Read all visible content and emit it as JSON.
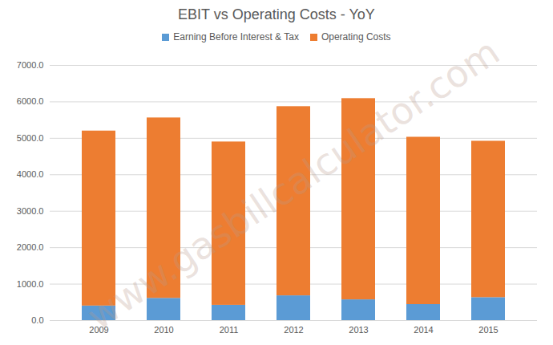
{
  "chart_data": {
    "type": "bar",
    "title": "EBIT vs Operating Costs - YoY",
    "stacked": true,
    "grid": true,
    "legend": "top",
    "watermark": "www.gasbillcalculator.com",
    "categories": [
      "2009",
      "2010",
      "2011",
      "2012",
      "2013",
      "2014",
      "2015"
    ],
    "series": [
      {
        "name": "Earning Before Interest & Tax",
        "color": "#5b9bd5",
        "values": [
          400,
          610,
          420,
          680,
          570,
          440,
          630
        ]
      },
      {
        "name": "Operating Costs",
        "color": "#ed7d31",
        "values": [
          4800,
          4950,
          4480,
          5190,
          5520,
          4590,
          4290
        ]
      }
    ],
    "ylim": [
      0,
      7000
    ],
    "yticks": [
      {
        "value": 0,
        "label": "0.0"
      },
      {
        "value": 1000,
        "label": "1000.0"
      },
      {
        "value": 2000,
        "label": "2000.0"
      },
      {
        "value": 3000,
        "label": "3000.0"
      },
      {
        "value": 4000,
        "label": "4000.0"
      },
      {
        "value": 5000,
        "label": "5000.0"
      },
      {
        "value": 6000,
        "label": "6000.0"
      },
      {
        "value": 7000,
        "label": "7000.0"
      }
    ]
  }
}
